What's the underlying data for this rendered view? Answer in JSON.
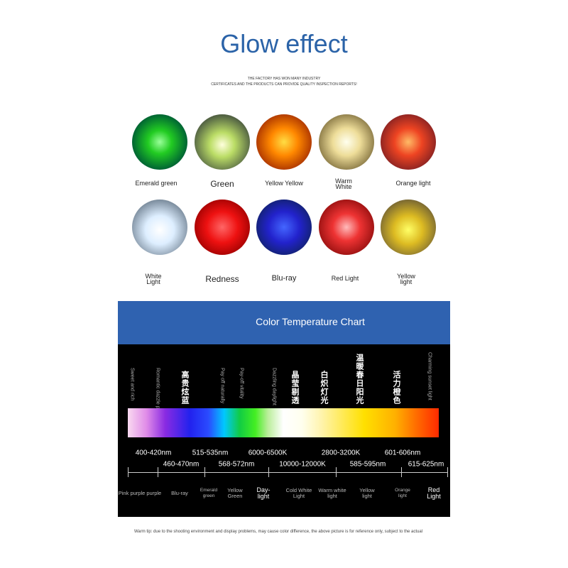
{
  "header": {
    "title": "Glow effect",
    "subtitle": [
      "THE FACTORY HAS WON MANY INDUSTRY",
      "CERTIFICATES AND THE PRODUCTS CAN PROVIDE QUALITY INSPECTION REPORTS!"
    ]
  },
  "leds": [
    [
      "Emerald green",
      "Green",
      "Yellow Yellow",
      "Warm White",
      "Orange light"
    ],
    [
      "White Light",
      "Redness",
      "Blu-ray",
      "Red Light",
      "Yellow light"
    ]
  ],
  "chart": {
    "title": "Color Temperature Chart",
    "vertical_labels": [
      "Sweet and rich",
      "Romantic dazzle purple",
      "高贵炫蓝",
      "Pay off naturally",
      "Pay-off vitality",
      "Dazzling daylight",
      "晶莹剔透",
      "白炽灯光",
      "温暖春日阳光",
      "活力橙色",
      "Charming sunset light"
    ],
    "upper_ranges": [
      "400-420nm",
      "515-535nm",
      "6000-6500K",
      "2800-3200K",
      "601-606nm"
    ],
    "lower_ranges": [
      "460-470nm",
      "568-572nm",
      "10000-12000K",
      "585-595nm",
      "615-625nm"
    ],
    "names": [
      "Pink purple purple",
      "Blu-ray",
      "Emerald green",
      "Yellow Green",
      "Day-light",
      "Cold White Light",
      "Warm white light",
      "Yellow light",
      "Orange light",
      "Red Light"
    ]
  },
  "footer": "Warm tip: due to the shooting environment and display problems, may cause color difference, the above picture is for reference only, subject to the actual"
}
